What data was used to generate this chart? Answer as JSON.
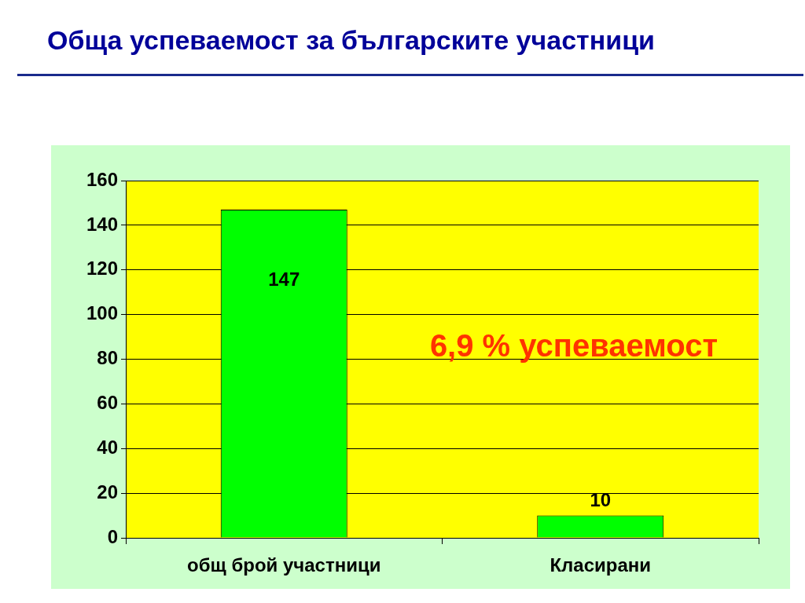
{
  "chart_data": {
    "type": "bar",
    "title": "Обща успеваемост за българските участници",
    "categories": [
      "общ брой участници",
      "Класирани"
    ],
    "values": [
      147,
      10
    ],
    "color": "#00ff00",
    "ylim": [
      0,
      160
    ],
    "yticks": [
      0,
      20,
      40,
      60,
      80,
      100,
      120,
      140,
      160
    ],
    "grid": "y",
    "data_labels": true,
    "annotations": [
      "6,9 % успеваемост"
    ]
  }
}
